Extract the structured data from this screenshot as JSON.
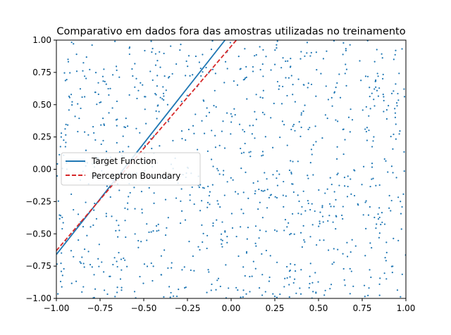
{
  "chart_data": {
    "type": "scatter",
    "title": "Comparativo em dados fora das amostras utilizadas no treinamento",
    "xlabel": "",
    "ylabel": "",
    "xlim": [
      -1.0,
      1.0
    ],
    "ylim": [
      -1.0,
      1.0
    ],
    "xticks": [
      "−1.00",
      "−0.75",
      "−0.50",
      "−0.25",
      "0.00",
      "0.25",
      "0.50",
      "0.75",
      "1.00"
    ],
    "yticks": [
      "−1.00",
      "−0.75",
      "−0.50",
      "−0.25",
      "0.00",
      "0.25",
      "0.50",
      "0.75",
      "1.00"
    ],
    "grid": false,
    "legend_position": "center-left",
    "series": [
      {
        "name": "Target Function",
        "kind": "line",
        "color": "#1f77b4",
        "style": "solid",
        "x": [
          -1.0,
          -0.035
        ],
        "y": [
          -0.66,
          1.0
        ]
      },
      {
        "name": "Perceptron Boundary",
        "kind": "line",
        "color": "#d62728",
        "style": "dashed",
        "x": [
          -1.0,
          0.03
        ],
        "y": [
          -0.63,
          1.0
        ]
      }
    ],
    "scatter": {
      "color": "#1f77b4",
      "count": 1000,
      "distribution": "uniform over [-1, 1] x [-1, 1]"
    }
  }
}
